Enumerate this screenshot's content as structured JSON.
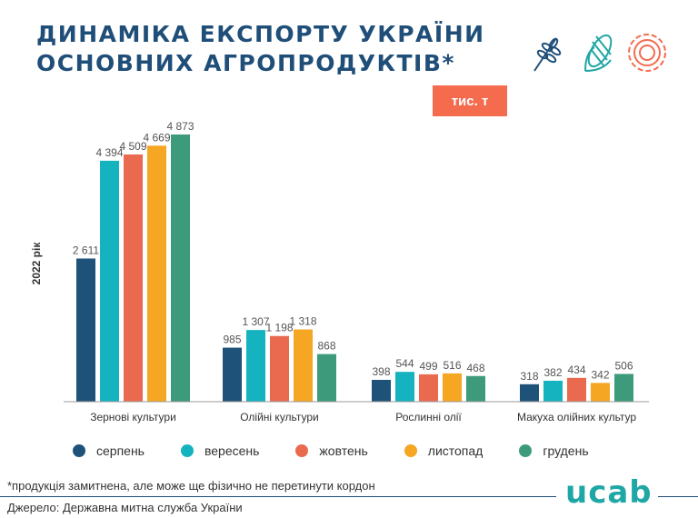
{
  "header": {
    "title_line1": "Динаміка експорту України",
    "title_line2": "основних агропродуктів*",
    "unit_badge": "тис. т"
  },
  "icons": [
    "wheat-icon",
    "corn-icon",
    "sunflower-icon"
  ],
  "colors": {
    "title": "#1f4e79",
    "badge": "#f46b4e",
    "logo": "#1fa7a5"
  },
  "chart_data": {
    "type": "bar",
    "ylabel": "2022 рік",
    "categories": [
      "Зернові культури",
      "Олійні культури",
      "Рослинні олії",
      "Макуха олійних культур"
    ],
    "series": [
      {
        "name": "серпень",
        "color": "#1f5279",
        "values": [
          2611,
          985,
          398,
          318
        ],
        "labels": [
          "2 611",
          "985",
          "398",
          "318"
        ]
      },
      {
        "name": "вересень",
        "color": "#15b3c0",
        "values": [
          4394,
          1307,
          544,
          382
        ],
        "labels": [
          "4 394",
          "1 307",
          "544",
          "382"
        ]
      },
      {
        "name": "жовтень",
        "color": "#ea6a4f",
        "values": [
          4509,
          1198,
          499,
          434
        ],
        "labels": [
          "4 509",
          "1 198",
          "499",
          "434"
        ]
      },
      {
        "name": "листопад",
        "color": "#f5a623",
        "values": [
          4669,
          1318,
          516,
          342
        ],
        "labels": [
          "4 669",
          "1 318",
          "516",
          "342"
        ]
      },
      {
        "name": "грудень",
        "color": "#3d9b7c",
        "values": [
          4873,
          868,
          468,
          506
        ],
        "labels": [
          "4 873",
          "868",
          "468",
          "506"
        ]
      }
    ],
    "ylim": [
      0,
      4873
    ],
    "grid": false,
    "legend": "bottom"
  },
  "footer": {
    "footnote": "*продукція замитнена, але може ще фізично не перетинути кордон",
    "source": "Джерело: Державна митна служба України",
    "logo": "ucab"
  }
}
